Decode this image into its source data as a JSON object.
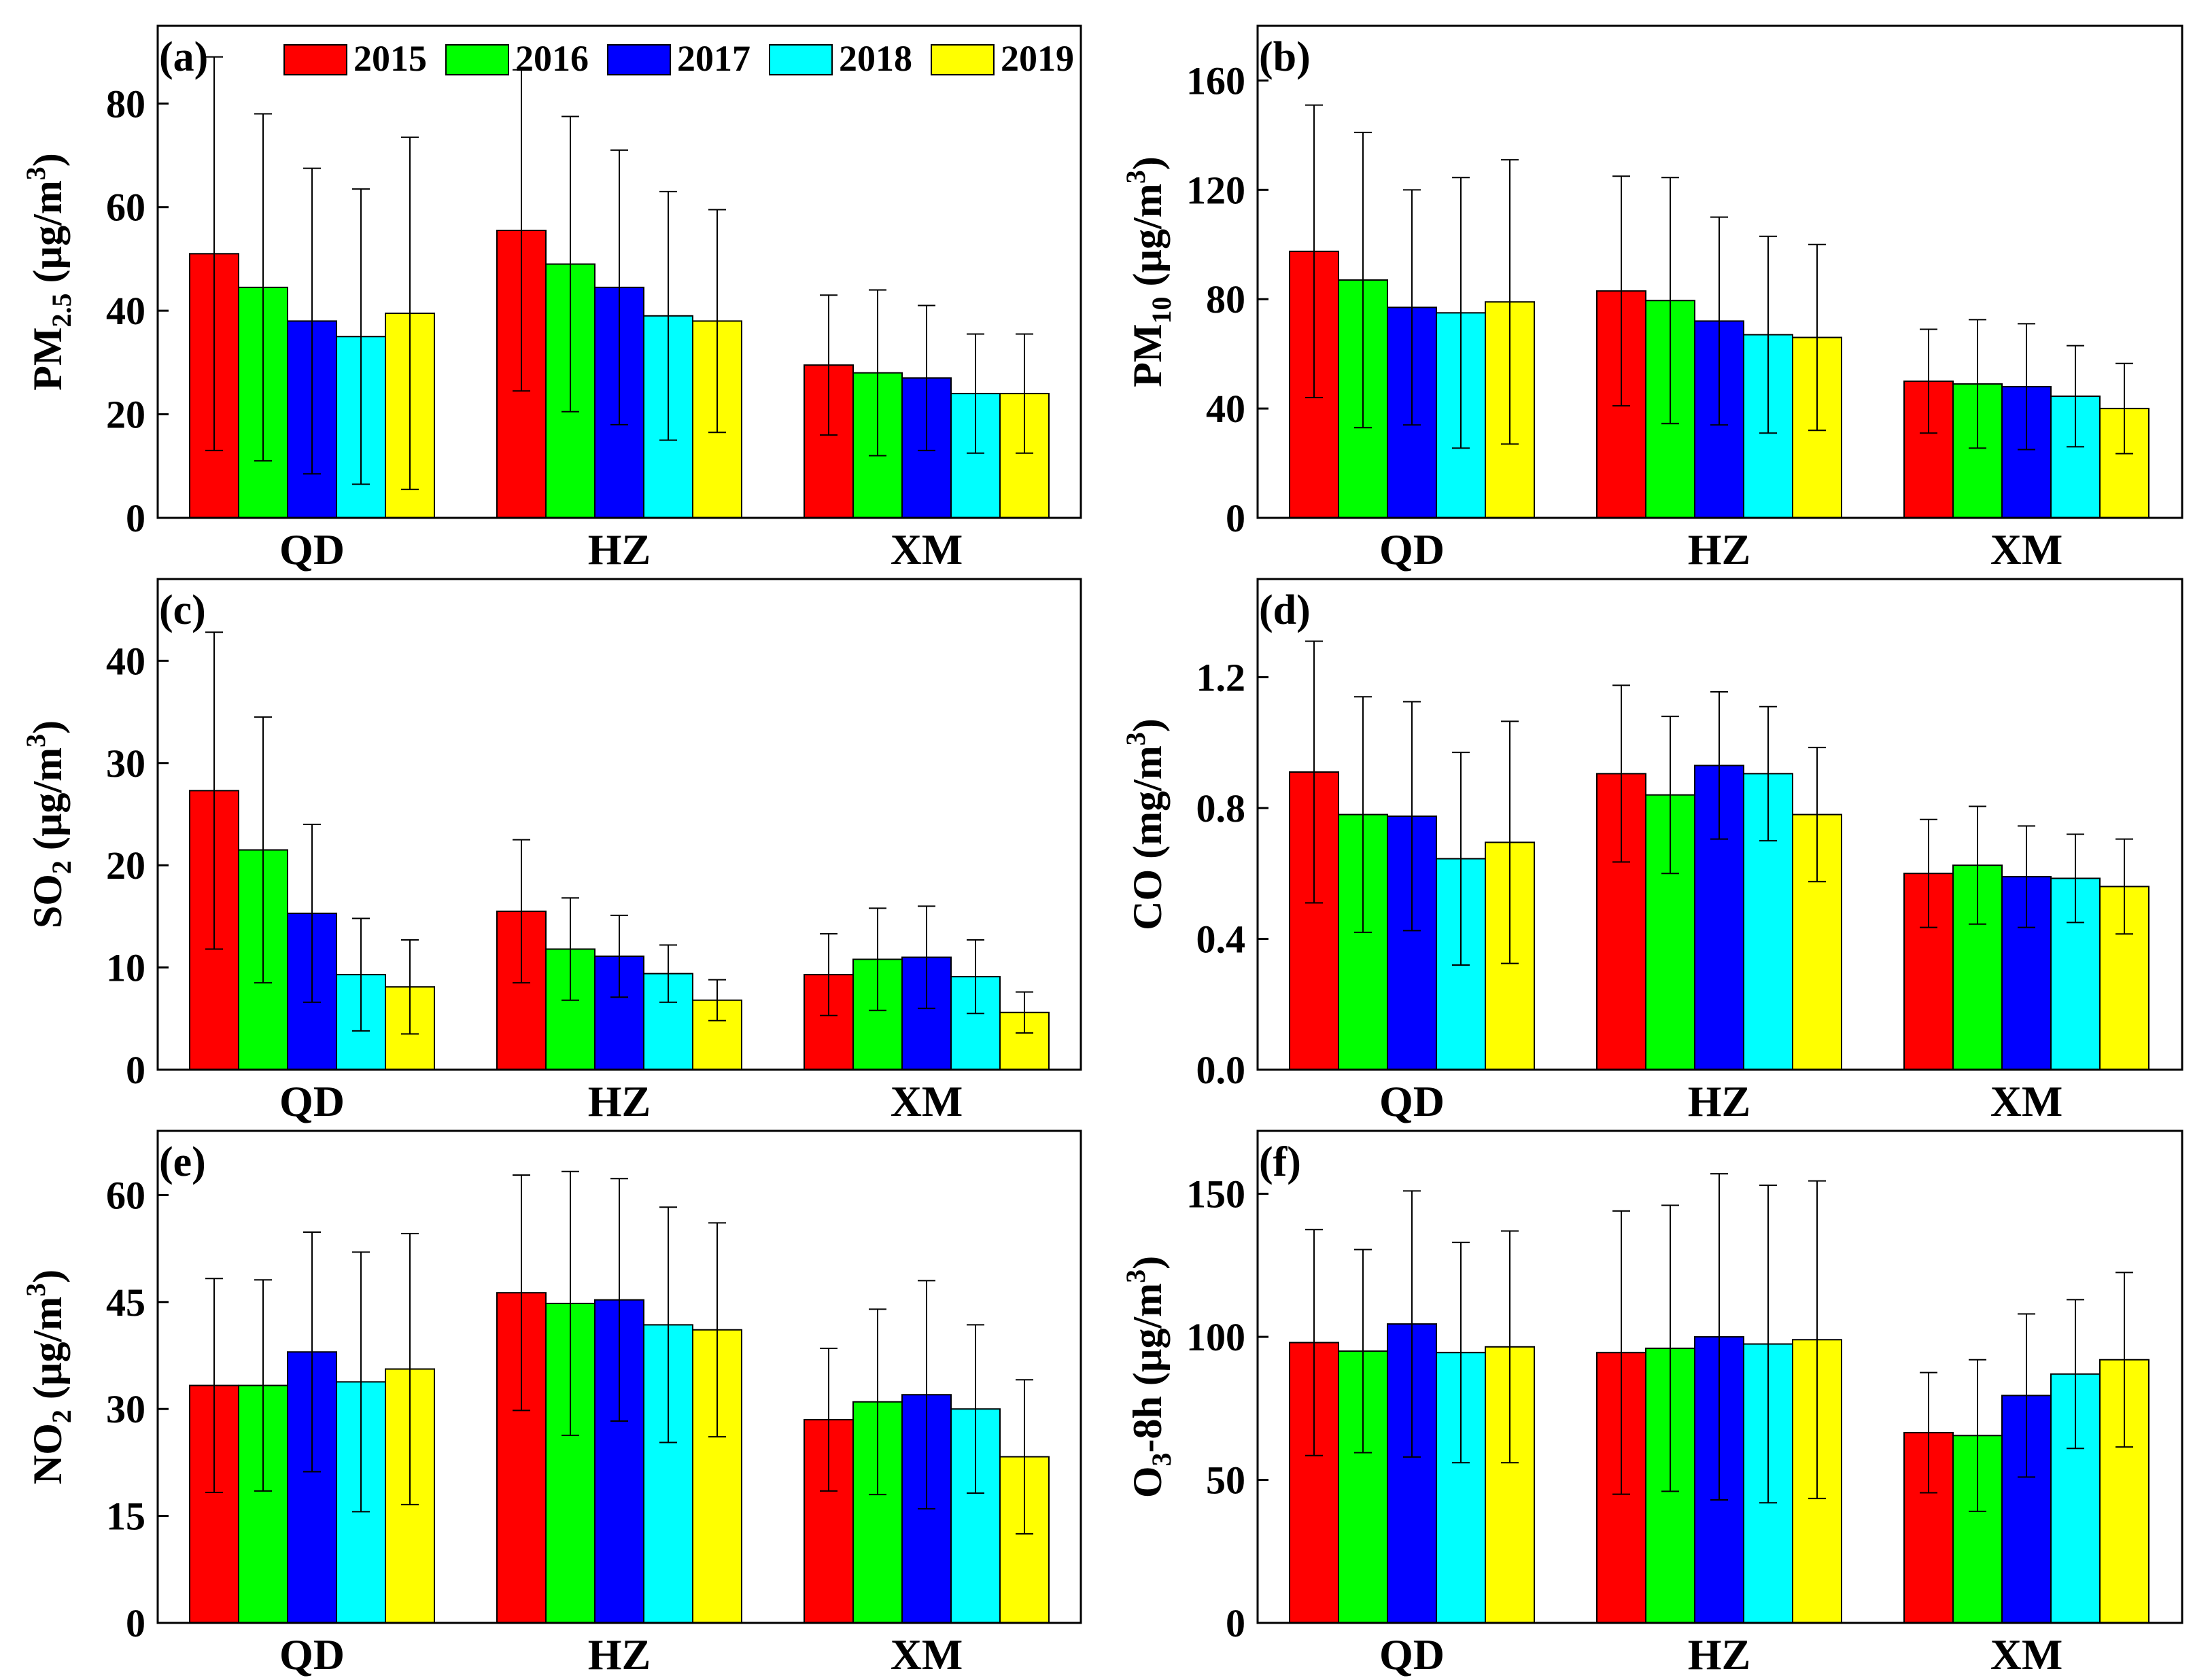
{
  "chart_data": [
    {
      "type": "bar",
      "panel": "(a)",
      "ylabel_parts": [
        {
          "t": "PM"
        },
        {
          "t": "2.5",
          "s": "sub"
        },
        {
          "t": " (µg/m"
        },
        {
          "t": "3",
          "s": "sup"
        },
        {
          "t": ")"
        }
      ],
      "ylim": [
        0,
        95
      ],
      "yticks": [
        0,
        20,
        40,
        60,
        80
      ],
      "ytick_labels": [
        "0",
        "20",
        "40",
        "60",
        "80"
      ],
      "categories": [
        "QD",
        "HZ",
        "XM"
      ],
      "series": [
        {
          "name": "2015",
          "values": [
            51,
            55.5,
            29.5
          ],
          "err": [
            38,
            31,
            13.5
          ]
        },
        {
          "name": "2016",
          "values": [
            44.5,
            49,
            28
          ],
          "err": [
            33.5,
            28.5,
            16
          ]
        },
        {
          "name": "2017",
          "values": [
            38,
            44.5,
            27
          ],
          "err": [
            29.5,
            26.5,
            14
          ]
        },
        {
          "name": "2018",
          "values": [
            35,
            39,
            24
          ],
          "err": [
            28.5,
            24,
            11.5
          ]
        },
        {
          "name": "2019",
          "values": [
            39.5,
            38,
            24
          ],
          "err": [
            34,
            21.5,
            11.5
          ]
        }
      ]
    },
    {
      "type": "bar",
      "panel": "(b)",
      "ylabel_parts": [
        {
          "t": "PM"
        },
        {
          "t": "10",
          "s": "sub"
        },
        {
          "t": " (µg/m"
        },
        {
          "t": "3",
          "s": "sup"
        },
        {
          "t": ")"
        }
      ],
      "ylim": [
        0,
        180
      ],
      "yticks": [
        0,
        40,
        80,
        120,
        160
      ],
      "ytick_labels": [
        "0",
        "40",
        "80",
        "120",
        "160"
      ],
      "categories": [
        "QD",
        "HZ",
        "XM"
      ],
      "series": [
        {
          "name": "2015",
          "values": [
            97.5,
            83,
            50
          ],
          "err": [
            53.5,
            42,
            19
          ]
        },
        {
          "name": "2016",
          "values": [
            87,
            79.5,
            49
          ],
          "err": [
            54,
            45,
            23.5
          ]
        },
        {
          "name": "2017",
          "values": [
            77,
            72,
            48
          ],
          "err": [
            43,
            38,
            23
          ]
        },
        {
          "name": "2018",
          "values": [
            75,
            67,
            44.5
          ],
          "err": [
            49.5,
            36,
            18.5
          ]
        },
        {
          "name": "2019",
          "values": [
            79,
            66,
            40
          ],
          "err": [
            52,
            34,
            16.5
          ]
        }
      ]
    },
    {
      "type": "bar",
      "panel": "(c)",
      "ylabel_parts": [
        {
          "t": "SO"
        },
        {
          "t": "2",
          "s": "sub"
        },
        {
          "t": " (µg/m"
        },
        {
          "t": "3",
          "s": "sup"
        },
        {
          "t": ")"
        }
      ],
      "ylim": [
        0,
        48
      ],
      "yticks": [
        0,
        10,
        20,
        30,
        40
      ],
      "ytick_labels": [
        "0",
        "10",
        "20",
        "30",
        "40"
      ],
      "categories": [
        "QD",
        "HZ",
        "XM"
      ],
      "series": [
        {
          "name": "2015",
          "values": [
            27.3,
            15.5,
            9.3
          ],
          "err": [
            15.5,
            7,
            4
          ]
        },
        {
          "name": "2016",
          "values": [
            21.5,
            11.8,
            10.8
          ],
          "err": [
            13,
            5,
            5
          ]
        },
        {
          "name": "2017",
          "values": [
            15.3,
            11.1,
            11
          ],
          "err": [
            8.7,
            4,
            5
          ]
        },
        {
          "name": "2018",
          "values": [
            9.3,
            9.4,
            9.1
          ],
          "err": [
            5.5,
            2.8,
            3.6
          ]
        },
        {
          "name": "2019",
          "values": [
            8.1,
            6.8,
            5.6
          ],
          "err": [
            4.6,
            2,
            2
          ]
        }
      ]
    },
    {
      "type": "bar",
      "panel": "(d)",
      "ylabel_parts": [
        {
          "t": "CO (mg/m"
        },
        {
          "t": "3",
          "s": "sup"
        },
        {
          "t": ")"
        }
      ],
      "ylim": [
        0,
        1.5
      ],
      "yticks": [
        0,
        0.4,
        0.8,
        1.2
      ],
      "ytick_labels": [
        "0.0",
        "0.4",
        "0.8",
        "1.2"
      ],
      "categories": [
        "QD",
        "HZ",
        "XM"
      ],
      "series": [
        {
          "name": "2015",
          "values": [
            0.91,
            0.905,
            0.6
          ],
          "err": [
            0.4,
            0.27,
            0.165
          ]
        },
        {
          "name": "2016",
          "values": [
            0.78,
            0.84,
            0.625
          ],
          "err": [
            0.36,
            0.24,
            0.18
          ]
        },
        {
          "name": "2017",
          "values": [
            0.775,
            0.93,
            0.59
          ],
          "err": [
            0.35,
            0.225,
            0.155
          ]
        },
        {
          "name": "2018",
          "values": [
            0.645,
            0.905,
            0.585
          ],
          "err": [
            0.325,
            0.205,
            0.135
          ]
        },
        {
          "name": "2019",
          "values": [
            0.695,
            0.78,
            0.56
          ],
          "err": [
            0.37,
            0.205,
            0.145
          ]
        }
      ]
    },
    {
      "type": "bar",
      "panel": "(e)",
      "ylabel_parts": [
        {
          "t": "NO"
        },
        {
          "t": "2",
          "s": "sub"
        },
        {
          "t": " (µg/m"
        },
        {
          "t": "3",
          "s": "sup"
        },
        {
          "t": ")"
        }
      ],
      "ylim": [
        0,
        69
      ],
      "yticks": [
        0,
        15,
        30,
        45,
        60
      ],
      "ytick_labels": [
        "0",
        "15",
        "30",
        "45",
        "60"
      ],
      "categories": [
        "QD",
        "HZ",
        "XM"
      ],
      "series": [
        {
          "name": "2015",
          "values": [
            33.3,
            46.3,
            28.5
          ],
          "err": [
            15,
            16.5,
            10
          ]
        },
        {
          "name": "2016",
          "values": [
            33.3,
            44.8,
            31
          ],
          "err": [
            14.8,
            18.5,
            13
          ]
        },
        {
          "name": "2017",
          "values": [
            38,
            45.3,
            32
          ],
          "err": [
            16.8,
            17,
            16
          ]
        },
        {
          "name": "2018",
          "values": [
            33.8,
            41.8,
            30
          ],
          "err": [
            18.2,
            16.5,
            11.8
          ]
        },
        {
          "name": "2019",
          "values": [
            35.6,
            41.1,
            23.3
          ],
          "err": [
            19,
            15,
            10.8
          ]
        }
      ]
    },
    {
      "type": "bar",
      "panel": "(f)",
      "ylabel_parts": [
        {
          "t": "O"
        },
        {
          "t": "3",
          "s": "sub"
        },
        {
          "t": "-8h (µg/m"
        },
        {
          "t": "3",
          "s": "sup"
        },
        {
          "t": ")"
        }
      ],
      "ylim": [
        0,
        172
      ],
      "yticks": [
        0,
        50,
        100,
        150
      ],
      "ytick_labels": [
        "0",
        "50",
        "100",
        "150"
      ],
      "categories": [
        "QD",
        "HZ",
        "XM"
      ],
      "series": [
        {
          "name": "2015",
          "values": [
            98,
            94.5,
            66.5
          ],
          "err": [
            39.5,
            49.5,
            21
          ]
        },
        {
          "name": "2016",
          "values": [
            95,
            96,
            65.5
          ],
          "err": [
            35.5,
            50,
            26.5
          ]
        },
        {
          "name": "2017",
          "values": [
            104.5,
            100,
            79.5
          ],
          "err": [
            46.5,
            57,
            28.5
          ]
        },
        {
          "name": "2018",
          "values": [
            94.5,
            97.5,
            87
          ],
          "err": [
            38.5,
            55.5,
            26
          ]
        },
        {
          "name": "2019",
          "values": [
            96.5,
            99,
            92
          ],
          "err": [
            40.5,
            55.5,
            30.5
          ]
        }
      ]
    }
  ],
  "legend": [
    {
      "name": "2015",
      "color": "#ff0000"
    },
    {
      "name": "2016",
      "color": "#00ff00"
    },
    {
      "name": "2017",
      "color": "#0000ff"
    },
    {
      "name": "2018",
      "color": "#00ffff"
    },
    {
      "name": "2019",
      "color": "#ffff00"
    }
  ]
}
